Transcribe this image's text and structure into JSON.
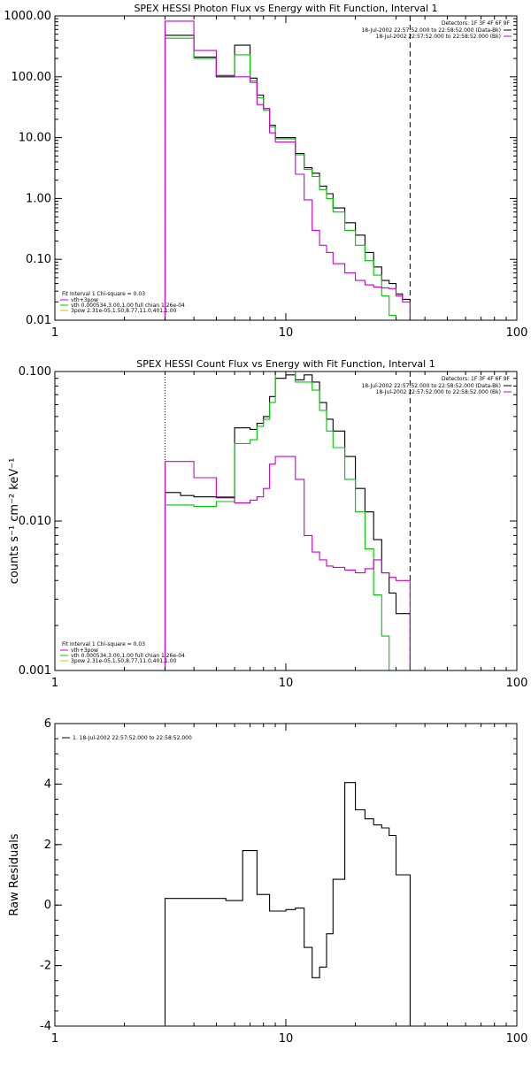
{
  "chart_data": [
    {
      "type": "line",
      "title": "SPEX HESSI Photon Flux vs Energy with Fit Function, Interval 1",
      "xscale": "log",
      "yscale": "log",
      "xlim": [
        1,
        100
      ],
      "ylim": [
        0.01,
        1000
      ],
      "xticks": [
        1,
        10,
        100
      ],
      "xtick_labels": [
        "1",
        "10",
        "100"
      ],
      "yticks": [
        0.01,
        0.1,
        1,
        10,
        100,
        1000
      ],
      "ytick_labels": [
        "0.01",
        "0.10",
        "1.00",
        "10.00",
        "100.00",
        "1000.00"
      ],
      "vlines": [
        {
          "x": 3.0,
          "style": "dotted",
          "color": "#00c800"
        },
        {
          "x": 34.5,
          "style": "dashed",
          "color": "#000000"
        }
      ],
      "top_legend": {
        "header": "Detectors: 1F 3F 4F 6F 9F",
        "entries": [
          {
            "text": "18-Jul-2002 22:57:52.000 to 22:58:52.000 (Data-Bk)",
            "color": "#000000"
          },
          {
            "text": "18-Jul-2002 22:57:52.000 to 22:58:52.000 (Bk)",
            "color": "#cc00cc"
          }
        ]
      },
      "fit_legend": {
        "header": "Fit Interval 1    Chi-square = 0.03",
        "entries": [
          {
            "text": "vth+3pow",
            "color": "#cc00cc"
          },
          {
            "text": "vth 0.000534,3.00,1.00    full chian 1.26e-04",
            "color": "#00c800"
          },
          {
            "text": "3pow 2.31e-05,1.50,8.77,11.0,401,1.00",
            "color": "#c8c800"
          }
        ]
      },
      "bin_edges": [
        3,
        3.5,
        4,
        4.5,
        5,
        5.5,
        6,
        6.5,
        7,
        7.5,
        8,
        8.5,
        9,
        10,
        11,
        12,
        13,
        14,
        15,
        16,
        18,
        20,
        22,
        24,
        26,
        28,
        30,
        32,
        34.5
      ],
      "series": [
        {
          "color": "#000000",
          "values": [
            480,
            480,
            210,
            210,
            100,
            100,
            330,
            330,
            95,
            50,
            30,
            16,
            10,
            10,
            5.5,
            3.2,
            2.6,
            1.6,
            1.2,
            0.7,
            0.4,
            0.25,
            0.13,
            0.075,
            0.045,
            0.04,
            0.027,
            0.022
          ]
        },
        {
          "color": "#00c800",
          "values": [
            430,
            430,
            200,
            200,
            105,
            105,
            230,
            230,
            80,
            45,
            28,
            15,
            9.5,
            9.5,
            5.2,
            3.0,
            2.3,
            1.4,
            1.0,
            0.6,
            0.3,
            0.17,
            0.095,
            0.055,
            0.025,
            0.012,
            0.008,
            0.006
          ]
        },
        {
          "color": "#cc00cc",
          "values": [
            820,
            820,
            270,
            270,
            105,
            105,
            100,
            100,
            85,
            35,
            30,
            12,
            8.5,
            8.5,
            2.5,
            0.95,
            0.3,
            0.17,
            0.13,
            0.085,
            0.06,
            0.045,
            0.038,
            0.035,
            0.034,
            0.033,
            0.025,
            0.02
          ]
        }
      ]
    },
    {
      "type": "line",
      "title": "SPEX HESSI Count Flux vs Energy with Fit Function, Interval 1",
      "ylabel": "counts s⁻¹ cm⁻² keV⁻¹",
      "xscale": "log",
      "yscale": "log",
      "xlim": [
        1,
        100
      ],
      "ylim": [
        0.001,
        0.1
      ],
      "xticks": [
        1,
        10,
        100
      ],
      "xtick_labels": [
        "1",
        "10",
        "100"
      ],
      "yticks": [
        0.001,
        0.01,
        0.1
      ],
      "ytick_labels": [
        "0.001",
        "0.010",
        "0.100"
      ],
      "vlines": [
        {
          "x": 3.0,
          "style": "dotted",
          "color": "#000000"
        },
        {
          "x": 34.5,
          "style": "dashed",
          "color": "#000000"
        }
      ],
      "top_legend": {
        "header": "Detectors: 1F 3F 4F 6F 9F",
        "entries": [
          {
            "text": "18-Jul-2002 22:57:52.000 to 22:58:52.000 (Data-Bk)",
            "color": "#000000"
          },
          {
            "text": "18-Jul-2002 22:57:52.000 to 22:58:52.000 (Bk)",
            "color": "#cc00cc"
          }
        ]
      },
      "fit_legend": {
        "header": "Fit Interval 1    Chi-square = 0.03",
        "entries": [
          {
            "text": "vth+3pow",
            "color": "#cc00cc"
          },
          {
            "text": "vth 0.000534,3.00,1.00    full chian 1.26e-04",
            "color": "#00c800"
          },
          {
            "text": "3pow 2.31e-05,1.50,8.77,11.0,401,1.00",
            "color": "#c8c800"
          }
        ]
      },
      "bin_edges": [
        3,
        3.5,
        4,
        4.5,
        5,
        5.5,
        6,
        6.5,
        7,
        7.5,
        8,
        8.5,
        9,
        10,
        11,
        12,
        13,
        14,
        15,
        16,
        18,
        20,
        22,
        24,
        26,
        28,
        30,
        32,
        34.5
      ],
      "series": [
        {
          "color": "#000000",
          "values": [
            0.0155,
            0.0148,
            0.0145,
            0.0145,
            0.0143,
            0.0143,
            0.042,
            0.042,
            0.041,
            0.045,
            0.05,
            0.068,
            0.09,
            0.095,
            0.088,
            0.095,
            0.085,
            0.062,
            0.048,
            0.04,
            0.027,
            0.0165,
            0.0115,
            0.0075,
            0.0045,
            0.0033,
            0.0024,
            0.0024
          ]
        },
        {
          "color": "#00c800",
          "values": [
            0.0128,
            0.0128,
            0.0125,
            0.0125,
            0.0135,
            0.0135,
            0.033,
            0.033,
            0.035,
            0.043,
            0.048,
            0.062,
            0.1,
            0.1,
            0.085,
            0.085,
            0.075,
            0.055,
            0.04,
            0.031,
            0.019,
            0.0115,
            0.0065,
            0.0032,
            0.0017,
            0.0009,
            0.0009,
            0.0009
          ]
        },
        {
          "color": "#cc00cc",
          "values": [
            0.025,
            0.025,
            0.0195,
            0.0195,
            0.0145,
            0.0145,
            0.0132,
            0.0132,
            0.0138,
            0.0145,
            0.0165,
            0.024,
            0.027,
            0.027,
            0.019,
            0.008,
            0.0062,
            0.0055,
            0.005,
            0.0049,
            0.0047,
            0.0045,
            0.0048,
            0.0055,
            0.0045,
            0.0042,
            0.004,
            0.004
          ]
        }
      ]
    },
    {
      "type": "line",
      "ylabel": "Raw Residuals",
      "xscale": "log",
      "yscale": "linear",
      "xlim": [
        1,
        100
      ],
      "ylim": [
        -4,
        6
      ],
      "xticks": [
        1,
        10,
        100
      ],
      "xtick_labels": [
        "1",
        "10",
        "100"
      ],
      "yticks": [
        -4,
        -2,
        0,
        2,
        4,
        6
      ],
      "ytick_labels": [
        "-4",
        "-2",
        "0",
        "2",
        "4",
        "6"
      ],
      "legend": {
        "entries": [
          {
            "text": "1. 18-Jul-2002 22:57:52.000 to 22:58:52.000",
            "color": "#000000"
          }
        ]
      },
      "bin_edges": [
        3,
        3.5,
        4,
        4.5,
        5,
        5.5,
        6,
        6.5,
        7,
        7.5,
        8,
        8.5,
        9,
        10,
        11,
        12,
        13,
        14,
        15,
        16,
        18,
        20,
        22,
        24,
        26,
        28,
        30,
        32,
        34.5
      ],
      "series": [
        {
          "color": "#000000",
          "values": [
            0.22,
            0.22,
            0.22,
            0.22,
            0.22,
            0.15,
            0.15,
            1.8,
            1.8,
            0.35,
            0.35,
            -0.2,
            -0.2,
            -0.15,
            -0.1,
            -1.4,
            -2.4,
            -2.05,
            -0.95,
            0.85,
            4.05,
            3.15,
            2.85,
            2.65,
            2.55,
            2.3,
            1.0,
            1.0
          ]
        }
      ]
    }
  ]
}
